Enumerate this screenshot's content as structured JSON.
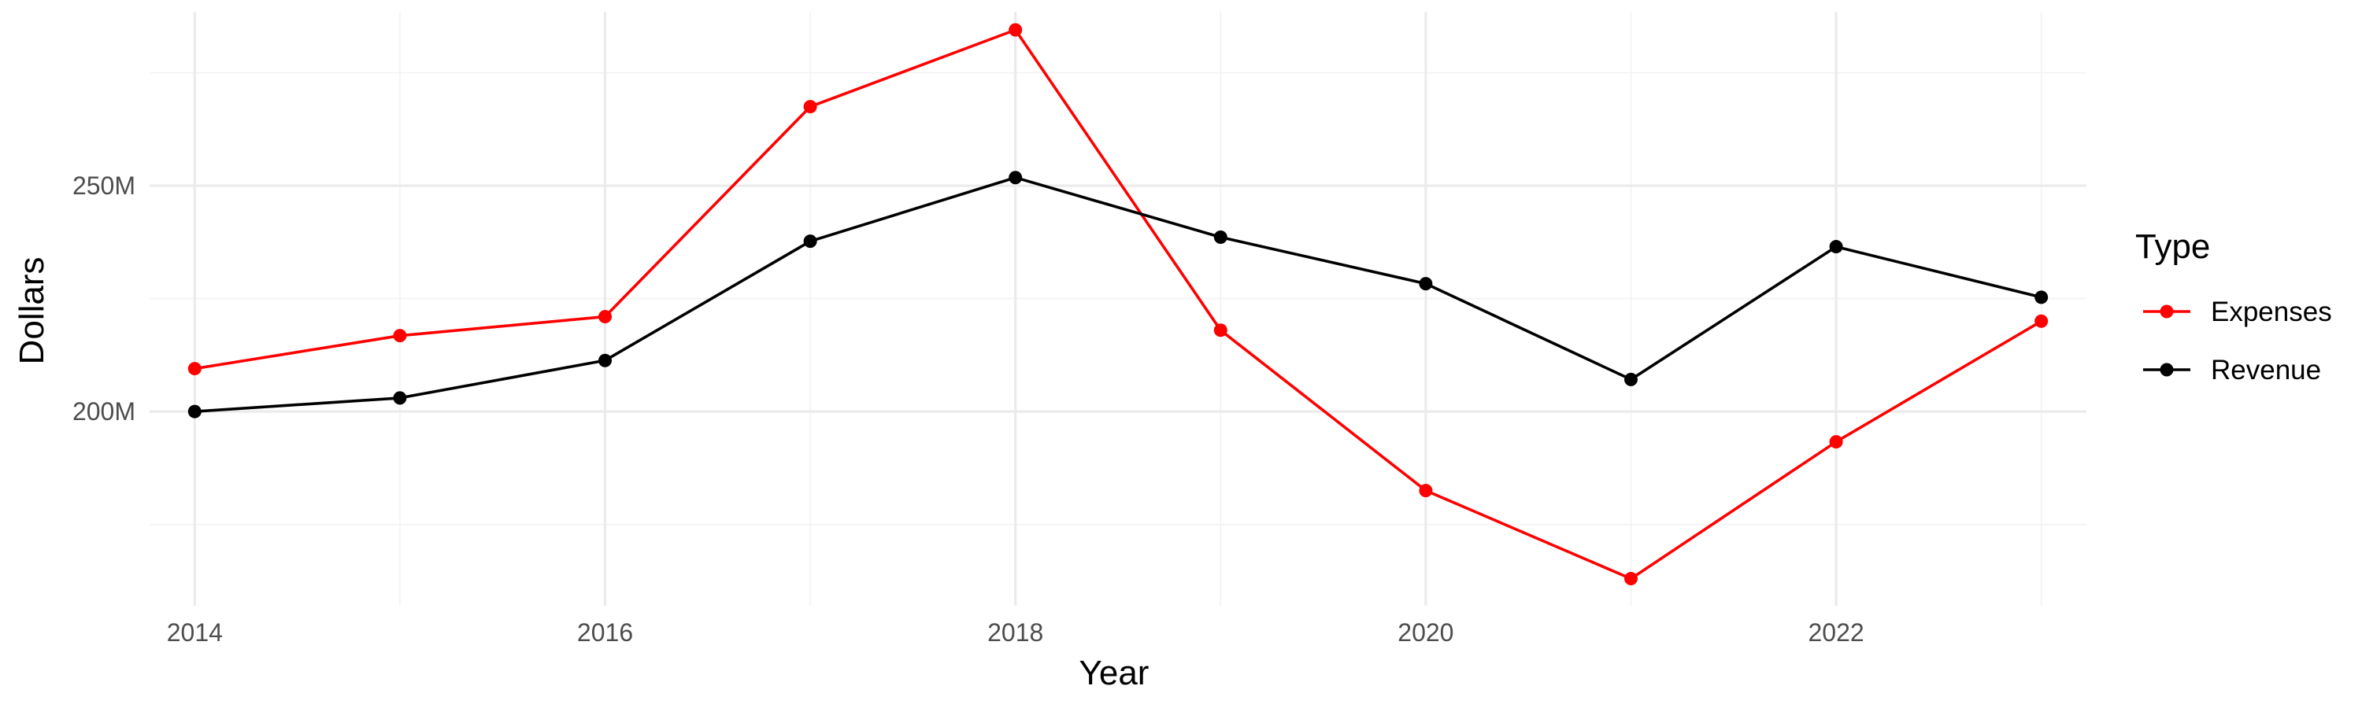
{
  "chart_data": {
    "type": "line",
    "title": "",
    "xlabel": "Year",
    "ylabel": "Dollars",
    "x": [
      2014,
      2015,
      2016,
      2017,
      2018,
      2019,
      2020,
      2021,
      2022,
      2023
    ],
    "x_ticks": [
      2014,
      2016,
      2018,
      2020,
      2022
    ],
    "x_tick_labels": [
      "2014",
      "2016",
      "2018",
      "2020",
      "2022"
    ],
    "y_ticks": [
      200000000,
      250000000
    ],
    "y_tick_labels": [
      "200M",
      "250M"
    ],
    "xlim": [
      2013.78,
      2023.22
    ],
    "ylim": [
      157000000,
      288500000
    ],
    "grid": true,
    "legend_title": "Type",
    "legend_position": "right",
    "series": [
      {
        "name": "Expenses",
        "color": "#ff0000",
        "values": [
          209500000,
          216800000,
          221000000,
          267500000,
          284500000,
          218000000,
          182500000,
          163000000,
          193300000,
          220000000
        ]
      },
      {
        "name": "Revenue",
        "color": "#000000",
        "values": [
          200000000,
          203000000,
          211300000,
          237700000,
          251800000,
          238600000,
          228300000,
          207100000,
          236500000,
          225300000
        ]
      }
    ]
  }
}
